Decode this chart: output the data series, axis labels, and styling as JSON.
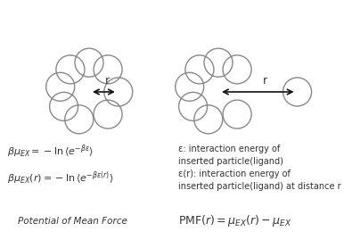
{
  "background_color": "#ffffff",
  "circle_color": "#888888",
  "circle_lw": 1.0,
  "arrow_color": "#111111",
  "text_color": "#333333",
  "fig_width": 3.86,
  "fig_height": 2.78,
  "eq1": "$\\beta\\mu_{EX} = -\\ln\\langle e^{-\\beta\\varepsilon}\\rangle$",
  "eq2": "$\\beta\\mu_{EX}(r) = -\\ln\\langle e^{-\\beta\\varepsilon(r)}\\rangle$",
  "label1": "ε: interaction energy of\ninserted particle(ligand)",
  "label2": "ε(r): interaction energy of\ninserted particle(ligand) at distance r",
  "pmf_label": "Potential of Mean Force",
  "pmf_eq": "$\\mathrm{PMF}(r) = \\mu_{EX}(r) - \\mu_{EX}$"
}
